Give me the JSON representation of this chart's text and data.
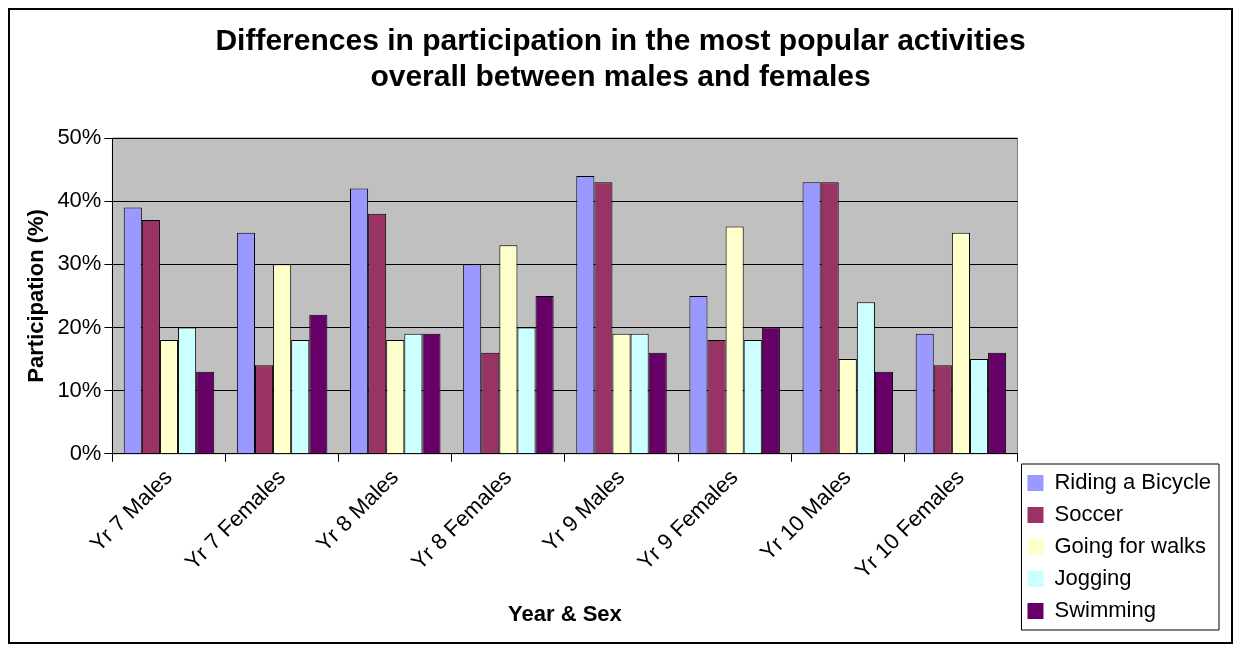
{
  "chart_data": {
    "type": "bar",
    "title": "Differences in participation in the most popular activities overall between males and females",
    "xlabel": "Year & Sex",
    "ylabel": "Participation (%)",
    "categories": [
      "Yr 7 Males",
      "Yr 7 Females",
      "Yr 8 Males",
      "Yr 8 Females",
      "Yr 9 Males",
      "Yr 9 Females",
      "Yr 10 Males",
      "Yr 10 Females"
    ],
    "series": [
      {
        "name": "Riding a Bicycle",
        "color": "#9999ff",
        "values": [
          39,
          35,
          42,
          30,
          44,
          25,
          43,
          19
        ]
      },
      {
        "name": "Soccer",
        "color": "#993366",
        "values": [
          37,
          14,
          38,
          16,
          43,
          18,
          43,
          14
        ]
      },
      {
        "name": "Going for walks",
        "color": "#ffffcc",
        "values": [
          18,
          30,
          18,
          33,
          19,
          36,
          15,
          35
        ]
      },
      {
        "name": "Jogging",
        "color": "#ccffff",
        "values": [
          20,
          18,
          19,
          20,
          19,
          18,
          24,
          15
        ]
      },
      {
        "name": "Swimming",
        "color": "#660066",
        "values": [
          13,
          22,
          19,
          25,
          16,
          20,
          13,
          16
        ]
      }
    ],
    "ylim": [
      0,
      50
    ],
    "yticks": [
      {
        "value": 0,
        "label": "0%"
      },
      {
        "value": 10,
        "label": "10%"
      },
      {
        "value": 20,
        "label": "20%"
      },
      {
        "value": 30,
        "label": "30%"
      },
      {
        "value": 40,
        "label": "40%"
      },
      {
        "value": 50,
        "label": "50%"
      }
    ],
    "grid": "y",
    "legend": "right"
  }
}
